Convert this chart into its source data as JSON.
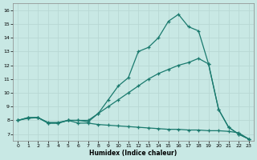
{
  "bg_color": "#c8e8e4",
  "grid_color": "#aacccc",
  "line_color": "#1a7a6e",
  "xlabel": "Humidex (Indice chaleur)",
  "xlim": [
    -0.5,
    23.5
  ],
  "ylim": [
    6.5,
    16.5
  ],
  "xticks": [
    0,
    1,
    2,
    3,
    4,
    5,
    6,
    7,
    8,
    9,
    10,
    11,
    12,
    13,
    14,
    15,
    16,
    17,
    18,
    19,
    20,
    21,
    22,
    23
  ],
  "yticks": [
    7,
    8,
    9,
    10,
    11,
    12,
    13,
    14,
    15,
    16
  ],
  "line1_x": [
    0,
    1,
    2,
    3,
    4,
    5,
    6,
    7,
    8,
    9,
    10,
    11,
    12,
    13,
    14,
    15,
    16,
    17,
    18,
    19,
    20,
    21,
    22,
    23
  ],
  "line1_y": [
    8.0,
    8.2,
    8.2,
    7.8,
    7.8,
    8.0,
    7.8,
    7.8,
    7.7,
    7.65,
    7.6,
    7.55,
    7.5,
    7.45,
    7.4,
    7.35,
    7.35,
    7.3,
    7.3,
    7.25,
    7.25,
    7.2,
    7.1,
    6.65
  ],
  "line2_x": [
    0,
    1,
    2,
    3,
    4,
    5,
    6,
    7,
    8,
    9,
    10,
    11,
    12,
    13,
    14,
    15,
    16,
    17,
    18,
    19,
    20,
    21,
    22,
    23
  ],
  "line2_y": [
    8.0,
    8.2,
    8.2,
    7.8,
    7.8,
    8.0,
    8.0,
    8.0,
    8.5,
    9.5,
    10.5,
    11.1,
    13.0,
    13.3,
    14.0,
    15.2,
    15.7,
    14.8,
    14.5,
    12.1,
    8.8,
    7.5,
    7.0,
    6.65
  ],
  "line3_x": [
    0,
    1,
    2,
    3,
    4,
    5,
    6,
    7,
    8,
    9,
    10,
    11,
    12,
    13,
    14,
    15,
    16,
    17,
    18,
    19,
    20,
    21,
    22,
    23
  ],
  "line3_y": [
    8.0,
    8.15,
    8.2,
    7.85,
    7.85,
    8.0,
    8.0,
    7.9,
    8.5,
    9.0,
    9.5,
    10.0,
    10.5,
    11.0,
    11.4,
    11.7,
    12.0,
    12.2,
    12.5,
    12.1,
    8.8,
    7.5,
    7.0,
    6.65
  ]
}
